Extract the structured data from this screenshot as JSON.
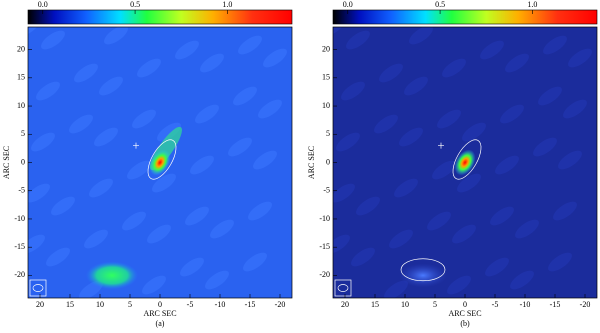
{
  "panels": [
    {
      "label": "(a)",
      "x_label": "ARC SEC",
      "y_label": "ARC SEC",
      "xlim": [
        22,
        -22
      ],
      "ylim": [
        -24,
        24
      ],
      "xticks": [
        20,
        15,
        10,
        5,
        0,
        -5,
        -10,
        -15,
        -20
      ],
      "yticks": [
        20,
        15,
        10,
        5,
        0,
        -5,
        -10,
        -15,
        -20
      ],
      "colorbar_lim": [
        -0.08,
        1.35
      ],
      "colorbar_ticks": [
        {
          "value": 0,
          "label": "0.0"
        },
        0.5,
        {
          "value": 1,
          "label": "1.0"
        }
      ]
    },
    {
      "label": "(b)",
      "x_label": "ARC SEC",
      "y_label": "ARC SEC",
      "xlim": [
        22,
        -22
      ],
      "ylim": [
        -24,
        24
      ],
      "xticks": [
        20,
        15,
        10,
        5,
        0,
        -5,
        -10,
        -15,
        -20
      ],
      "yticks": [
        20,
        15,
        10,
        5,
        0,
        -5,
        -10,
        -15,
        -20
      ],
      "colorbar_lim": [
        -0.08,
        1.35
      ],
      "colorbar_ticks": [
        {
          "value": 0,
          "label": "0.0"
        },
        0.5,
        {
          "value": 1,
          "label": "1.0"
        }
      ]
    }
  ]
}
